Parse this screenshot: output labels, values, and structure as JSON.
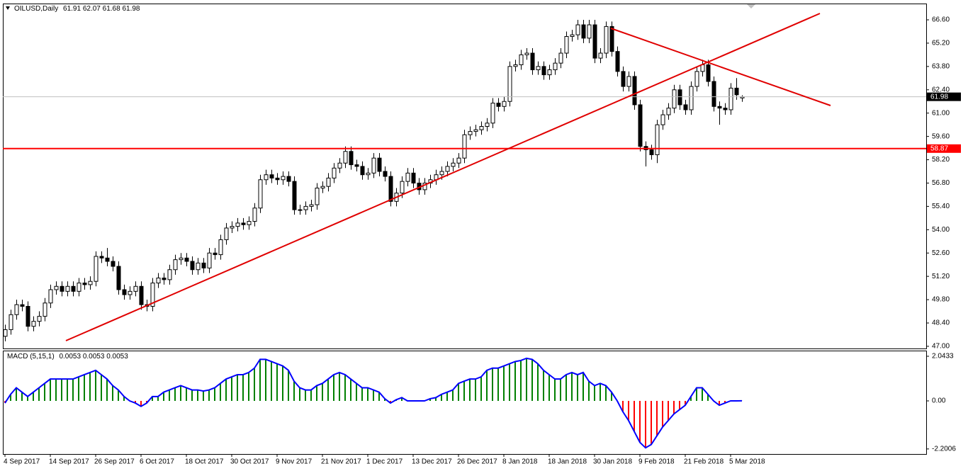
{
  "chart_data": [
    {
      "type": "candlestick",
      "title": "OILUSD,Daily",
      "categories": [
        "4 Sep 2017",
        null,
        null,
        null,
        null,
        null,
        null,
        null,
        "14 Sep 2017",
        null,
        null,
        null,
        null,
        null,
        null,
        null,
        "26 Sep 2017",
        null,
        null,
        null,
        null,
        null,
        null,
        null,
        "6 Oct 2017",
        null,
        null,
        null,
        null,
        null,
        null,
        null,
        "18 Oct 2017",
        null,
        null,
        null,
        null,
        null,
        null,
        null,
        "30 Oct 2017",
        null,
        null,
        null,
        null,
        null,
        null,
        null,
        "9 Nov 2017",
        null,
        null,
        null,
        null,
        null,
        null,
        null,
        "21 Nov 2017",
        null,
        null,
        null,
        null,
        null,
        null,
        null,
        "1 Dec 2017",
        null,
        null,
        null,
        null,
        null,
        null,
        null,
        "13 Dec 2017",
        null,
        null,
        null,
        null,
        null,
        null,
        null,
        "26 Dec 2017",
        null,
        null,
        null,
        null,
        null,
        null,
        null,
        "8 Jan 2018",
        null,
        null,
        null,
        null,
        null,
        null,
        null,
        "18 Jan 2018",
        null,
        null,
        null,
        null,
        null,
        null,
        null,
        "30 Jan 2018",
        null,
        null,
        null,
        null,
        null,
        null,
        null,
        "9 Feb 2018",
        null,
        null,
        null,
        null,
        null,
        null,
        null,
        "21 Feb 2018",
        null,
        null,
        null,
        null,
        null,
        null,
        null,
        "5 Mar 2018",
        null,
        null
      ],
      "open": [
        47.6,
        48.0,
        48.9,
        49.5,
        49.4,
        48.2,
        48.5,
        48.8,
        49.6,
        50.4,
        50.6,
        50.3,
        50.6,
        50.3,
        50.8,
        50.7,
        50.9,
        52.4,
        52.3,
        52.1,
        51.8,
        50.4,
        50.1,
        50.3,
        50.6,
        49.5,
        49.4,
        50.8,
        51.1,
        51.0,
        51.6,
        52.2,
        52.3,
        52.1,
        51.6,
        52.0,
        51.7,
        52.6,
        52.5,
        53.4,
        54.1,
        54.2,
        54.4,
        54.3,
        54.5,
        55.3,
        57.0,
        57.3,
        57.1,
        57.0,
        57.2,
        56.9,
        55.2,
        55.2,
        55.4,
        55.5,
        56.5,
        56.6,
        57.1,
        57.7,
        58.0,
        58.7,
        57.9,
        57.8,
        57.3,
        57.4,
        58.3,
        57.5,
        57.2,
        55.7,
        56.2,
        56.9,
        57.4,
        56.8,
        56.4,
        56.8,
        57.0,
        57.3,
        57.5,
        57.8,
        58.0,
        58.3,
        59.7,
        59.9,
        60.0,
        60.2,
        60.4,
        61.6,
        61.4,
        61.7,
        63.8,
        63.9,
        64.5,
        64.6,
        63.6,
        63.8,
        63.3,
        63.6,
        64.0,
        64.6,
        65.6,
        65.7,
        66.3,
        65.5,
        66.3,
        64.3,
        64.6,
        66.2,
        64.7,
        63.5,
        62.6,
        63.2,
        61.5,
        59.0,
        58.8,
        58.5,
        60.3,
        60.9,
        61.3,
        62.4,
        61.5,
        61.2,
        62.6,
        63.5,
        63.9,
        62.9,
        61.4,
        61.3,
        61.2,
        62.5,
        61.91
      ],
      "high": [
        48.3,
        49.2,
        49.8,
        49.8,
        49.7,
        48.8,
        49.1,
        49.9,
        50.7,
        50.9,
        50.9,
        50.9,
        50.9,
        51.1,
        51.1,
        51.2,
        52.7,
        52.7,
        52.9,
        52.4,
        52.1,
        50.7,
        50.6,
        50.9,
        50.9,
        49.8,
        51.1,
        51.4,
        51.4,
        51.9,
        52.5,
        52.6,
        52.6,
        52.4,
        52.3,
        52.3,
        52.9,
        52.9,
        53.7,
        54.4,
        54.5,
        54.7,
        54.7,
        54.8,
        55.6,
        57.3,
        57.6,
        57.6,
        57.4,
        57.5,
        57.5,
        57.2,
        55.5,
        55.7,
        55.8,
        56.8,
        56.9,
        57.4,
        58.0,
        58.3,
        59.0,
        59.0,
        58.2,
        58.1,
        57.7,
        58.6,
        58.6,
        57.8,
        57.5,
        56.5,
        57.2,
        57.7,
        57.7,
        57.1,
        57.1,
        57.3,
        57.6,
        57.8,
        58.1,
        58.3,
        58.6,
        60.0,
        60.2,
        60.3,
        60.5,
        60.7,
        61.9,
        61.9,
        62.0,
        64.1,
        64.2,
        64.8,
        64.9,
        64.9,
        64.1,
        64.1,
        63.9,
        64.3,
        64.9,
        65.9,
        66.0,
        66.6,
        66.6,
        66.6,
        66.6,
        64.9,
        66.5,
        66.5,
        65.0,
        63.8,
        63.5,
        63.5,
        61.8,
        59.3,
        59.1,
        60.6,
        61.2,
        61.6,
        62.7,
        62.7,
        61.8,
        62.9,
        63.8,
        64.2,
        64.2,
        63.2,
        61.7,
        61.6,
        62.8,
        63.1,
        62.07
      ],
      "low": [
        47.3,
        47.7,
        48.6,
        49.1,
        47.9,
        47.9,
        48.2,
        48.5,
        49.3,
        50.1,
        50.0,
        50.0,
        50.0,
        50.0,
        50.4,
        50.4,
        50.6,
        52.0,
        51.8,
        51.5,
        50.1,
        49.8,
        49.8,
        50.0,
        49.2,
        49.1,
        49.1,
        50.5,
        50.7,
        50.7,
        51.3,
        51.9,
        51.8,
        51.3,
        51.3,
        51.4,
        51.4,
        52.2,
        52.2,
        53.1,
        53.8,
        53.9,
        54.0,
        54.0,
        54.2,
        55.0,
        56.7,
        56.8,
        56.7,
        56.7,
        56.6,
        54.9,
        54.9,
        54.9,
        55.1,
        55.2,
        56.2,
        56.3,
        56.8,
        57.4,
        57.7,
        57.6,
        57.5,
        57.0,
        57.0,
        57.1,
        57.2,
        56.9,
        55.4,
        55.4,
        55.9,
        56.6,
        56.5,
        56.1,
        56.1,
        56.5,
        56.7,
        57.0,
        57.2,
        57.5,
        57.7,
        58.0,
        59.4,
        59.6,
        59.7,
        59.9,
        60.1,
        61.1,
        61.1,
        61.4,
        63.5,
        63.6,
        64.2,
        63.3,
        63.3,
        63.0,
        63.0,
        63.3,
        63.7,
        64.3,
        65.3,
        65.4,
        65.2,
        65.2,
        64.0,
        64.0,
        64.3,
        64.4,
        63.2,
        62.3,
        62.3,
        61.2,
        58.7,
        57.8,
        58.2,
        58.0,
        60.0,
        60.6,
        61.0,
        61.2,
        60.9,
        60.9,
        62.3,
        63.2,
        62.6,
        61.1,
        60.3,
        60.9,
        60.9,
        61.8,
        61.68
      ],
      "close": [
        48.0,
        48.9,
        49.5,
        49.4,
        48.2,
        48.5,
        48.8,
        49.6,
        50.4,
        50.6,
        50.3,
        50.6,
        50.3,
        50.8,
        50.7,
        50.9,
        52.4,
        52.3,
        52.1,
        51.8,
        50.4,
        50.1,
        50.3,
        50.6,
        49.5,
        49.4,
        50.8,
        51.1,
        51.0,
        51.6,
        52.2,
        52.3,
        52.1,
        51.6,
        52.0,
        51.7,
        52.6,
        52.5,
        53.4,
        54.1,
        54.2,
        54.4,
        54.3,
        54.5,
        55.3,
        57.0,
        57.3,
        57.1,
        57.0,
        57.2,
        56.9,
        55.2,
        55.2,
        55.4,
        55.5,
        56.5,
        56.6,
        57.1,
        57.7,
        58.0,
        58.7,
        57.9,
        57.8,
        57.3,
        57.4,
        58.3,
        57.5,
        57.2,
        55.7,
        56.2,
        56.9,
        57.4,
        56.8,
        56.4,
        56.8,
        57.0,
        57.3,
        57.5,
        57.8,
        58.0,
        58.3,
        59.7,
        59.9,
        60.0,
        60.2,
        60.4,
        61.6,
        61.4,
        61.7,
        63.8,
        63.9,
        64.5,
        64.6,
        63.6,
        63.8,
        63.3,
        63.6,
        64.0,
        64.6,
        65.6,
        65.7,
        66.3,
        65.5,
        66.3,
        64.3,
        64.6,
        66.2,
        64.7,
        63.5,
        62.6,
        63.2,
        61.5,
        59.0,
        58.8,
        58.5,
        60.3,
        60.9,
        61.3,
        62.4,
        61.5,
        61.2,
        62.6,
        63.5,
        63.9,
        62.9,
        61.4,
        61.3,
        61.2,
        62.5,
        62.1,
        61.98
      ],
      "up_color": "#ffffff",
      "down_color": "#000000",
      "ylim": [
        46.87,
        67.45
      ],
      "yticks": [
        {
          "value": 66.6,
          "label": "66.60"
        },
        {
          "value": 65.2,
          "label": "65.20"
        },
        {
          "value": 63.8,
          "label": "63.80"
        },
        {
          "value": 62.4,
          "label": "62.40"
        },
        {
          "value": 61,
          "label": "61.00"
        },
        {
          "value": 59.6,
          "label": "59.60"
        },
        {
          "value": 58.2,
          "label": "58.20"
        },
        {
          "value": 56.8,
          "label": "56.80"
        },
        {
          "value": 55.4,
          "label": "55.40"
        },
        {
          "value": 54,
          "label": "54.00"
        },
        {
          "value": 52.6,
          "label": "52.60"
        },
        {
          "value": 51.2,
          "label": "51.20"
        },
        {
          "value": 49.8,
          "label": "49.80"
        },
        {
          "value": 48.4,
          "label": "48.40"
        },
        {
          "value": 47,
          "label": "47.00"
        }
      ],
      "hline": {
        "value": 58.87,
        "color": "#ff0000"
      },
      "price_line_color": "#c0c0c0"
    },
    {
      "type": "histogram",
      "title": "MACD (5,15,1)",
      "values": [
        -0.1,
        0.3,
        0.6,
        0.4,
        0.2,
        0.4,
        0.6,
        0.8,
        1.0,
        1.0,
        1.0,
        1.0,
        1.0,
        1.1,
        1.2,
        1.3,
        1.4,
        1.2,
        1.0,
        0.7,
        0.5,
        0.2,
        0.0,
        -0.1,
        -0.25,
        -0.1,
        0.2,
        0.2,
        0.4,
        0.5,
        0.6,
        0.7,
        0.6,
        0.5,
        0.5,
        0.45,
        0.5,
        0.6,
        0.8,
        1.0,
        1.1,
        1.2,
        1.2,
        1.3,
        1.5,
        1.9,
        1.9,
        1.8,
        1.7,
        1.6,
        1.4,
        0.9,
        0.6,
        0.5,
        0.5,
        0.7,
        0.8,
        1.0,
        1.2,
        1.3,
        1.2,
        1.0,
        0.8,
        0.6,
        0.6,
        0.5,
        0.4,
        0.1,
        -0.1,
        0.05,
        0.15,
        0.0,
        0.0,
        0.0,
        0.0,
        0.1,
        0.15,
        0.3,
        0.4,
        0.5,
        0.8,
        0.9,
        1.0,
        1.0,
        1.1,
        1.4,
        1.5,
        1.5,
        1.6,
        1.7,
        1.8,
        1.85,
        1.95,
        1.9,
        1.7,
        1.4,
        1.2,
        1.0,
        1.0,
        1.2,
        1.3,
        1.2,
        1.3,
        0.9,
        0.7,
        0.8,
        0.7,
        0.4,
        0.0,
        -0.5,
        -0.9,
        -1.4,
        -1.9,
        -2.15,
        -2.0,
        -1.6,
        -1.2,
        -0.9,
        -0.6,
        -0.4,
        -0.2,
        0.2,
        0.6,
        0.6,
        0.3,
        0.0,
        -0.2,
        -0.1,
        0.0,
        0.0,
        0.0053
      ],
      "positive_color": "#008000",
      "negative_color": "#ff0000",
      "line_color": "#0000ff",
      "ylim": [
        -2.4,
        2.27
      ],
      "yticks": [
        2.0433,
        {
          "value": 0,
          "label": "0.00"
        },
        -2.2006
      ]
    }
  ]
}
